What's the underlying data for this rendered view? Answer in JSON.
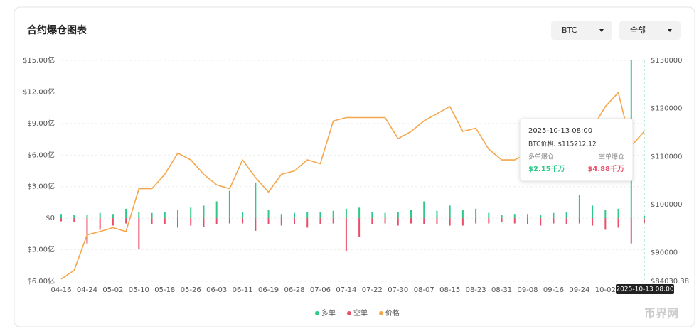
{
  "header": {
    "title": "合约爆仓图表",
    "symbol": "BTC",
    "filter": "全部"
  },
  "chart_data": {
    "type": "bar-line",
    "categories": [
      "04-16",
      null,
      "04-24",
      null,
      "05-02",
      null,
      "05-10",
      null,
      "05-18",
      null,
      "05-26",
      null,
      "06-03",
      null,
      "06-11",
      null,
      "06-19",
      null,
      "06-28",
      null,
      "07-06",
      null,
      "07-14",
      null,
      "07-22",
      null,
      "07-30",
      null,
      "08-07",
      null,
      "08-15",
      null,
      "08-23",
      null,
      "08-31",
      null,
      "09-08",
      null,
      "09-16",
      null,
      "09-24",
      null,
      "10-02",
      null,
      null,
      null
    ],
    "series": [
      {
        "name": "多单",
        "color": "#2ec98a",
        "values": [
          0.4,
          0.3,
          0.3,
          0.5,
          0.4,
          0.9,
          0.6,
          0.5,
          0.6,
          0.8,
          1.0,
          1.2,
          1.6,
          2.6,
          0.6,
          3.4,
          0.8,
          0.4,
          0.5,
          0.6,
          0.6,
          0.7,
          0.9,
          1.0,
          0.6,
          0.5,
          0.6,
          0.8,
          1.6,
          0.7,
          1.2,
          0.8,
          0.9,
          0.5,
          0.3,
          0.4,
          0.4,
          0.3,
          0.5,
          0.6,
          2.2,
          1.2,
          0.8,
          0.9,
          15,
          0.215
        ]
      },
      {
        "name": "空单",
        "color": "#e8506a",
        "values": [
          -0.3,
          -0.4,
          -2.4,
          -1.1,
          -0.7,
          -0.5,
          -2.9,
          -0.6,
          -0.6,
          -0.9,
          -0.7,
          -0.8,
          -0.6,
          -0.5,
          -0.5,
          -1.2,
          -0.6,
          -0.7,
          -0.6,
          -0.9,
          -0.6,
          -0.5,
          -3.1,
          -1.8,
          -0.6,
          -0.5,
          -0.7,
          -0.5,
          -0.6,
          -0.6,
          -0.7,
          -0.7,
          -0.5,
          -0.5,
          -0.4,
          -0.5,
          -0.6,
          -0.7,
          -0.5,
          -0.6,
          -0.5,
          -0.7,
          -1.1,
          -0.9,
          -2.4,
          -0.488
        ]
      },
      {
        "name": "价格",
        "color": "#f5a64a",
        "axis": "y2",
        "values": [
          84500,
          86300,
          93700,
          94400,
          95200,
          94400,
          103300,
          103300,
          106300,
          110700,
          109300,
          106300,
          104100,
          103300,
          109300,
          105600,
          102600,
          106300,
          107000,
          109300,
          108500,
          117400,
          118100,
          118100,
          118100,
          118100,
          113700,
          115200,
          117400,
          118900,
          120400,
          115200,
          115900,
          111500,
          109300,
          109300,
          110700,
          113000,
          115200,
          115200,
          113000,
          115900,
          120400,
          123300,
          112200,
          115212.12
        ]
      }
    ],
    "ylim": [
      -6,
      15
    ],
    "yticks": [
      {
        "value": 15,
        "label": "$15.00亿"
      },
      {
        "value": 12,
        "label": "$12.00亿"
      },
      {
        "value": 9,
        "label": "$9.00亿"
      },
      {
        "value": 6,
        "label": "$6.00亿"
      },
      {
        "value": 3,
        "label": "$3.00亿"
      },
      {
        "value": 0,
        "label": "$0"
      },
      {
        "value": -3,
        "label": "$3.00亿"
      },
      {
        "value": -6,
        "label": "$6.00亿"
      }
    ],
    "y2lim": [
      84030.38,
      130000
    ],
    "y2ticks": [
      {
        "value": 130000,
        "label": "$130000"
      },
      {
        "value": 120000,
        "label": "$120000"
      },
      {
        "value": 110000,
        "label": "$110000"
      },
      {
        "value": 100000,
        "label": "$100000"
      },
      {
        "value": 90000,
        "label": "$90000"
      },
      {
        "value": 84030.38,
        "label": "$84030.38"
      }
    ],
    "grid": true,
    "crosshair_label": "2025-10-13 08:00",
    "tooltip": {
      "date": "2025-10-13 08:00",
      "price": "BTC价格: $115212.12",
      "long_label": "多单爆仓",
      "long_value": "$2.15千万",
      "short_label": "空单爆仓",
      "short_value": "$4.88千万"
    }
  },
  "watermark": "币界网"
}
